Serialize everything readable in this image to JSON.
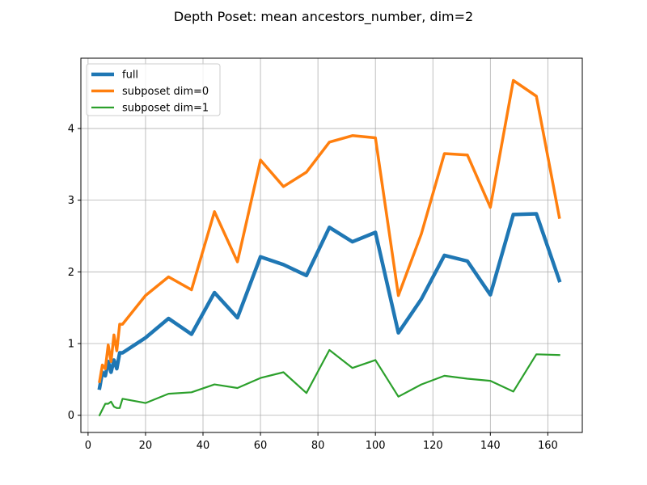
{
  "chart_data": {
    "type": "line",
    "title": "Depth Poset: mean ancestors_number, dim=2",
    "xlabel": "",
    "ylabel": "",
    "xlim": [
      -2.5,
      172
    ],
    "ylim": [
      -0.24,
      4.98
    ],
    "xticks": [
      0,
      20,
      40,
      60,
      80,
      100,
      120,
      140,
      160
    ],
    "yticks": [
      0,
      1,
      2,
      3,
      4
    ],
    "grid": true,
    "legend_position": "top-left",
    "series": [
      {
        "name": "full",
        "color": "#1f77b4",
        "width": 4.5,
        "x": [
          4,
          5,
          6,
          7,
          8,
          9,
          10,
          11,
          12,
          20,
          28,
          36,
          44,
          52,
          60,
          68,
          76,
          84,
          92,
          100,
          108,
          116,
          124,
          132,
          140,
          148,
          156,
          164
        ],
        "y": [
          0.38,
          0.6,
          0.55,
          0.75,
          0.6,
          0.77,
          0.65,
          0.87,
          0.87,
          1.08,
          1.35,
          1.13,
          1.71,
          1.36,
          2.21,
          2.1,
          1.95,
          2.62,
          2.42,
          2.55,
          1.15,
          1.62,
          2.23,
          2.15,
          1.68,
          2.8,
          2.81,
          1.88
        ]
      },
      {
        "name": "subposet dim=0",
        "color": "#ff7f0e",
        "width": 3.5,
        "x": [
          4,
          5,
          6,
          7,
          8,
          9,
          10,
          11,
          12,
          20,
          28,
          36,
          44,
          52,
          60,
          68,
          76,
          84,
          92,
          100,
          108,
          116,
          124,
          132,
          140,
          148,
          156,
          164
        ],
        "y": [
          0.47,
          0.7,
          0.65,
          0.98,
          0.75,
          1.12,
          0.9,
          1.27,
          1.27,
          1.67,
          1.93,
          1.75,
          2.84,
          2.14,
          3.56,
          3.19,
          3.39,
          3.81,
          3.9,
          3.87,
          1.67,
          2.53,
          3.65,
          3.63,
          2.9,
          4.67,
          4.45,
          2.76
        ]
      },
      {
        "name": "subposet dim=1",
        "color": "#2ca02c",
        "width": 2.2,
        "x": [
          4,
          5,
          6,
          7,
          8,
          9,
          10,
          11,
          12,
          20,
          28,
          36,
          44,
          52,
          60,
          68,
          76,
          84,
          92,
          100,
          108,
          116,
          124,
          132,
          140,
          148,
          156,
          164
        ],
        "y": [
          0.0,
          0.08,
          0.16,
          0.16,
          0.19,
          0.12,
          0.1,
          0.1,
          0.23,
          0.17,
          0.3,
          0.32,
          0.43,
          0.38,
          0.52,
          0.6,
          0.31,
          0.91,
          0.66,
          0.77,
          0.26,
          0.43,
          0.55,
          0.51,
          0.48,
          0.33,
          0.85,
          0.84
        ]
      }
    ]
  }
}
